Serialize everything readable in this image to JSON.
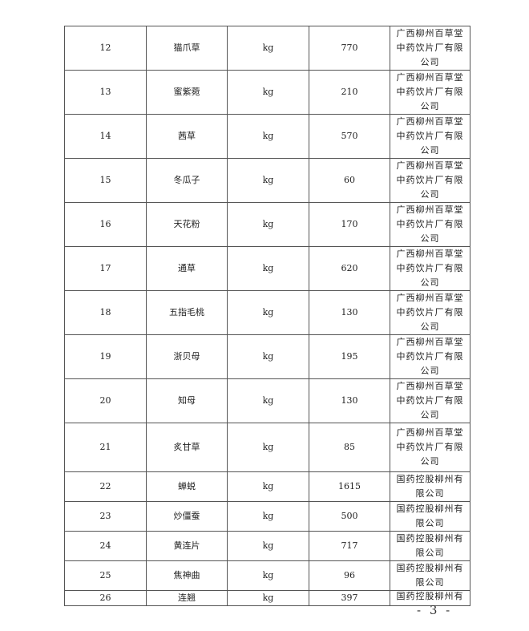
{
  "table": {
    "rows": [
      {
        "no": "12",
        "name": "猫爪草",
        "unit": "kg",
        "qty": "770",
        "supplier": "广西柳州百草堂中药饮片厂有限公司"
      },
      {
        "no": "13",
        "name": "蜜紫菀",
        "unit": "kg",
        "qty": "210",
        "supplier": "广西柳州百草堂中药饮片厂有限公司"
      },
      {
        "no": "14",
        "name": "茜草",
        "unit": "kg",
        "qty": "570",
        "supplier": "广西柳州百草堂中药饮片厂有限公司"
      },
      {
        "no": "15",
        "name": "冬瓜子",
        "unit": "kg",
        "qty": "60",
        "supplier": "广西柳州百草堂中药饮片厂有限公司"
      },
      {
        "no": "16",
        "name": "天花粉",
        "unit": "kg",
        "qty": "170",
        "supplier": "广西柳州百草堂中药饮片厂有限公司"
      },
      {
        "no": "17",
        "name": "通草",
        "unit": "kg",
        "qty": "620",
        "supplier": "广西柳州百草堂中药饮片厂有限公司"
      },
      {
        "no": "18",
        "name": "五指毛桃",
        "unit": "kg",
        "qty": "130",
        "supplier": "广西柳州百草堂中药饮片厂有限公司"
      },
      {
        "no": "19",
        "name": "浙贝母",
        "unit": "kg",
        "qty": "195",
        "supplier": "广西柳州百草堂中药饮片厂有限公司"
      },
      {
        "no": "20",
        "name": "知母",
        "unit": "kg",
        "qty": "130",
        "supplier": "广西柳州百草堂中药饮片厂有限公司"
      },
      {
        "no": "21",
        "name": "炙甘草",
        "unit": "kg",
        "qty": "85",
        "supplier": "广西柳州百草堂中药饮片厂有限公司"
      },
      {
        "no": "22",
        "name": "蝉蜕",
        "unit": "kg",
        "qty": "1615",
        "supplier": "国药控股柳州有限公司"
      },
      {
        "no": "23",
        "name": "炒僵蚕",
        "unit": "kg",
        "qty": "500",
        "supplier": "国药控股柳州有限公司"
      },
      {
        "no": "24",
        "name": "黄连片",
        "unit": "kg",
        "qty": "717",
        "supplier": "国药控股柳州有限公司"
      },
      {
        "no": "25",
        "name": "焦神曲",
        "unit": "kg",
        "qty": "96",
        "supplier": "国药控股柳州有限公司"
      },
      {
        "no": "26",
        "name": "连翘",
        "unit": "kg",
        "qty": "397",
        "supplier": "国药控股柳州有"
      }
    ]
  },
  "page_number": "- 3 -"
}
